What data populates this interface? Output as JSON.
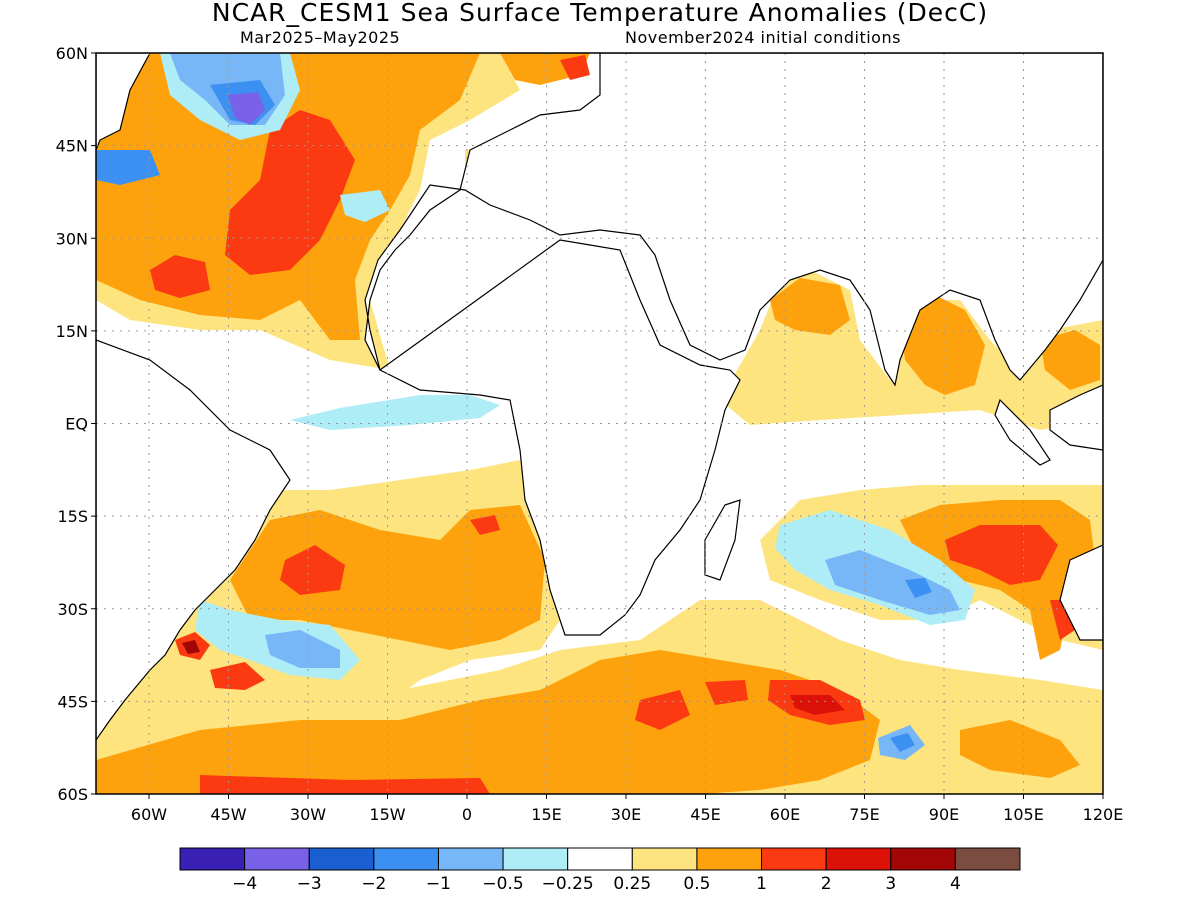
{
  "map": {
    "title": "NCAR_CESM1 Sea Surface Temperature Anomalies (DecC)",
    "subtitle_left": "Mar2025–May2025",
    "subtitle_right": "November2024 initial conditions",
    "lat_labels": [
      "60N",
      "45N",
      "30N",
      "15N",
      "EQ",
      "15S",
      "30S",
      "45S",
      "60S"
    ],
    "lon_labels": [
      "60W",
      "45W",
      "30W",
      "15W",
      "0",
      "15E",
      "30E",
      "45E",
      "60E",
      "75E",
      "90E",
      "105E",
      "120E"
    ],
    "lon_range": [
      -70,
      120
    ],
    "lat_range": [
      -60,
      60
    ],
    "grid": "dotted"
  },
  "colorbar": {
    "colors": [
      "#3a1fb4",
      "#7a62e8",
      "#1a5fd2",
      "#3b90f2",
      "#78b7f7",
      "#aeecf6",
      "#ffffff",
      "#fde47f",
      "#fda20c",
      "#fb3a12",
      "#dc1208",
      "#a30606",
      "#7b4c40"
    ],
    "tick_labels": [
      "−4",
      "−3",
      "−2",
      "−1",
      "−0.5",
      "−0.25",
      "0.25",
      "0.5",
      "1",
      "2",
      "3",
      "4"
    ]
  }
}
